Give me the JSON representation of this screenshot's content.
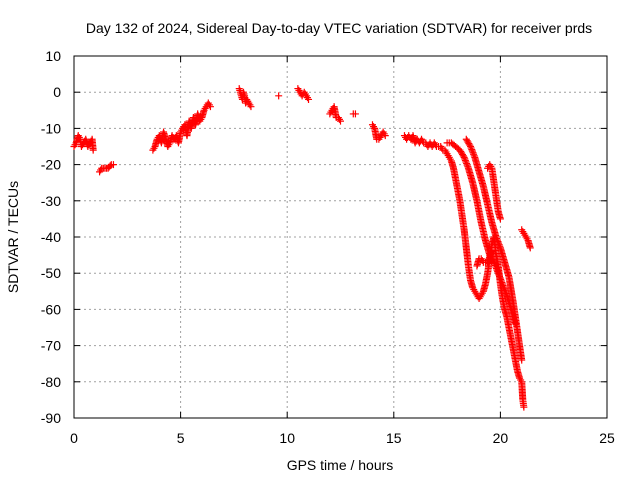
{
  "chart_data": {
    "type": "scatter",
    "title": "Day 132 of 2024, Sidereal Day-to-day VTEC variation (SDTVAR) for receiver prds",
    "xlabel": "GPS time / hours",
    "ylabel": "SDTVAR / TECUs",
    "xlim": [
      0,
      25
    ],
    "ylim": [
      -90,
      10
    ],
    "xticks": [
      0,
      5,
      10,
      15,
      20,
      25
    ],
    "yticks": [
      10,
      0,
      -10,
      -20,
      -30,
      -40,
      -50,
      -60,
      -70,
      -80,
      -90
    ],
    "grid": true,
    "marker": "+",
    "series": [
      {
        "name": "SDTVAR",
        "color": "#ff0000",
        "segments": [
          {
            "x": [
              0.0,
              0.1,
              0.2,
              0.3,
              0.35,
              0.45,
              0.55,
              0.65,
              0.75,
              0.85,
              0.9
            ],
            "y": [
              -15,
              -14,
              -12,
              -13,
              -15,
              -14,
              -13,
              -15,
              -14,
              -13,
              -16
            ]
          },
          {
            "x": [
              1.2,
              1.3,
              1.45,
              1.6,
              1.75,
              1.85
            ],
            "y": [
              -22,
              -21,
              -21,
              -21,
              -20,
              -20
            ]
          },
          {
            "x": [
              3.7,
              3.8,
              3.9,
              4.0,
              4.1,
              4.2,
              4.3,
              4.4,
              4.5,
              4.6,
              4.7,
              4.8,
              4.9,
              5.0,
              5.1,
              5.2,
              5.3,
              5.4,
              5.5,
              5.6,
              5.7,
              5.8,
              5.9,
              6.0,
              6.1,
              6.2,
              6.3,
              6.4
            ],
            "y": [
              -16,
              -15,
              -13,
              -12,
              -14,
              -11,
              -13,
              -15,
              -14,
              -12,
              -13,
              -12,
              -14,
              -11,
              -10,
              -9,
              -12,
              -8,
              -10,
              -7,
              -9,
              -6,
              -8,
              -7,
              -5,
              -4,
              -3,
              -4
            ]
          },
          {
            "x": [
              7.75,
              7.8,
              7.85,
              7.9,
              7.95,
              8.0,
              8.05,
              8.1,
              8.2,
              8.3
            ],
            "y": [
              1,
              0,
              -1,
              -2,
              0,
              -1,
              -3,
              -2,
              -3,
              -4
            ]
          },
          {
            "x": [
              9.6
            ],
            "y": [
              -1
            ]
          },
          {
            "x": [
              10.5,
              10.6,
              10.7,
              10.8,
              10.9,
              11.0
            ],
            "y": [
              1,
              0,
              -1,
              0,
              -1,
              -2
            ]
          },
          {
            "x": [
              12.0,
              12.1,
              12.2,
              12.3,
              12.4,
              12.5
            ],
            "y": [
              -6,
              -5,
              -4,
              -7,
              -7,
              -8
            ]
          },
          {
            "x": [
              13.1,
              13.2
            ],
            "y": [
              -6,
              -6
            ]
          },
          {
            "x": [
              14.0,
              14.1,
              14.2,
              14.3,
              14.4,
              14.5,
              14.6
            ],
            "y": [
              -9,
              -10,
              -13,
              -13,
              -12,
              -11,
              -12
            ]
          },
          {
            "x": [
              15.5,
              15.6,
              15.7,
              15.8,
              15.9,
              16.0,
              16.1,
              16.2,
              16.3,
              16.4,
              16.5,
              16.6,
              16.7,
              16.8,
              16.9,
              17.0,
              17.1,
              17.2,
              17.3,
              17.4,
              17.5,
              17.6,
              17.7,
              17.8,
              17.9,
              18.0,
              18.1,
              18.2,
              18.3,
              18.4,
              18.5,
              18.6,
              18.7,
              18.8,
              18.9,
              19.0,
              19.1,
              19.2,
              19.3,
              19.4,
              19.5,
              19.6,
              19.7,
              19.8,
              19.9,
              20.0,
              20.1,
              20.2,
              20.3,
              20.4,
              20.5,
              20.6,
              20.7,
              20.8,
              20.9,
              21.0,
              21.05,
              21.1
            ],
            "y": [
              -12,
              -13,
              -12,
              -13,
              -12,
              -14,
              -13,
              -14,
              -13,
              -14,
              -14,
              -15,
              -14,
              -15,
              -14,
              -15,
              -15,
              -15,
              -16,
              -16,
              -17,
              -18,
              -19,
              -21,
              -24,
              -27,
              -30,
              -34,
              -38,
              -43,
              -48,
              -52,
              -54,
              -55,
              -56,
              -57,
              -56,
              -55,
              -53,
              -50,
              -46,
              -42,
              -40,
              -45,
              -48,
              -53,
              -57,
              -60,
              -62,
              -65,
              -68,
              -71,
              -74,
              -77,
              -79,
              -80,
              -85,
              -87
            ]
          },
          {
            "x": [
              17.5,
              17.7,
              17.9,
              18.1,
              18.3,
              18.5,
              18.7,
              18.9,
              19.1,
              19.3,
              19.5,
              19.7,
              19.9,
              20.1,
              20.3,
              20.5,
              20.7
            ],
            "y": [
              -14,
              -14,
              -15,
              -16,
              -18,
              -21,
              -25,
              -30,
              -36,
              -41,
              -45,
              -47,
              -50,
              -53,
              -56,
              -60,
              -64
            ]
          },
          {
            "x": [
              18.4,
              18.6,
              18.8,
              19.0,
              19.2,
              19.4,
              19.6,
              19.8,
              20.0,
              20.2,
              20.4,
              20.6,
              20.8,
              21.0
            ],
            "y": [
              -13,
              -15,
              -18,
              -22,
              -26,
              -31,
              -36,
              -40,
              -43,
              -47,
              -51,
              -58,
              -66,
              -74
            ]
          },
          {
            "x": [
              18.9,
              19.0,
              19.1,
              19.2,
              19.4,
              19.6
            ],
            "y": [
              -48,
              -46,
              -46,
              -47,
              -47,
              -44
            ]
          },
          {
            "x": [
              19.4,
              19.5,
              19.6,
              19.7,
              19.8,
              19.9,
              20.0
            ],
            "y": [
              -21,
              -20,
              -21,
              -25,
              -29,
              -33,
              -35
            ]
          },
          {
            "x": [
              21.0,
              21.1,
              21.2,
              21.3,
              21.4
            ],
            "y": [
              -38,
              -39,
              -40,
              -41,
              -43
            ]
          }
        ]
      }
    ]
  }
}
